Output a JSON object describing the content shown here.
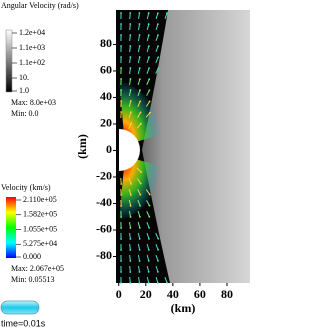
{
  "chart_data": {
    "type": "field",
    "xlabel": "(km)",
    "ylabel": "(km)",
    "xlim": [
      -2,
      97
    ],
    "ylim": [
      -100,
      106
    ],
    "xticks": [
      0,
      20,
      40,
      60,
      80
    ],
    "yticks": [
      80,
      60,
      40,
      20,
      0,
      -20,
      -40,
      -60,
      -80
    ],
    "legends": [
      {
        "title": "Angular Velocity (rad/s)",
        "labels": [
          "1.2e+04",
          "1.1e+03",
          "1.1e+02",
          "10.",
          "1.0"
        ],
        "max": "Max: 8.0e+03",
        "min": "Min: 0.0",
        "colors": [
          "#ffffff",
          "#000000"
        ]
      },
      {
        "title": "Velocity (km/s)",
        "labels": [
          "2.110e+05",
          "1.582e+05",
          "1.055e+05",
          "5.275e+04",
          "0.000"
        ],
        "max": "Max: 2.067e+05",
        "min": "Min: 0.05513",
        "colors": [
          "#ff0000",
          "#ffff00",
          "#00ff00",
          "#00ffff",
          "#0000ff"
        ]
      }
    ],
    "time": "time=0.01s"
  }
}
